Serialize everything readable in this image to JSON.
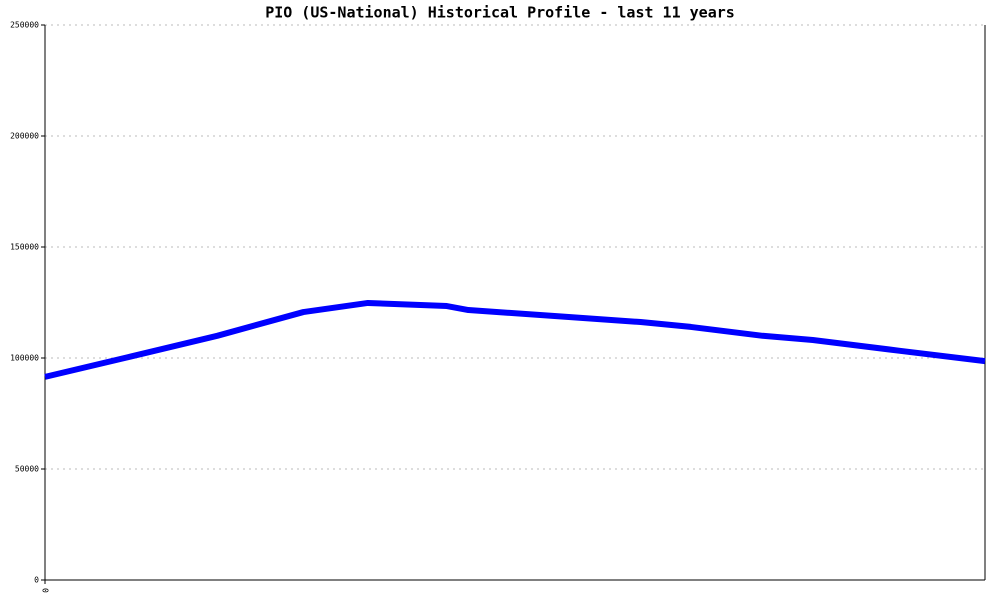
{
  "chart_data": {
    "type": "line",
    "title": "PIO (US-National) Historical Profile - last 11 years",
    "x": [
      0,
      12,
      24,
      36,
      45,
      56,
      59,
      72,
      83,
      90,
      100,
      107,
      119,
      131
    ],
    "series": [
      {
        "color": "#0000ff",
        "values": [
          91500,
          100700,
          110000,
          120700,
          124800,
          123400,
          121600,
          118700,
          116200,
          114000,
          110000,
          108100,
          103300,
          98600
        ]
      }
    ],
    "xlim": [
      0,
      131
    ],
    "xticks": [
      0
    ],
    "ylim": [
      0,
      250000
    ],
    "yticks": [
      0,
      50000,
      100000,
      150000,
      200000,
      250000
    ],
    "grid": true
  }
}
